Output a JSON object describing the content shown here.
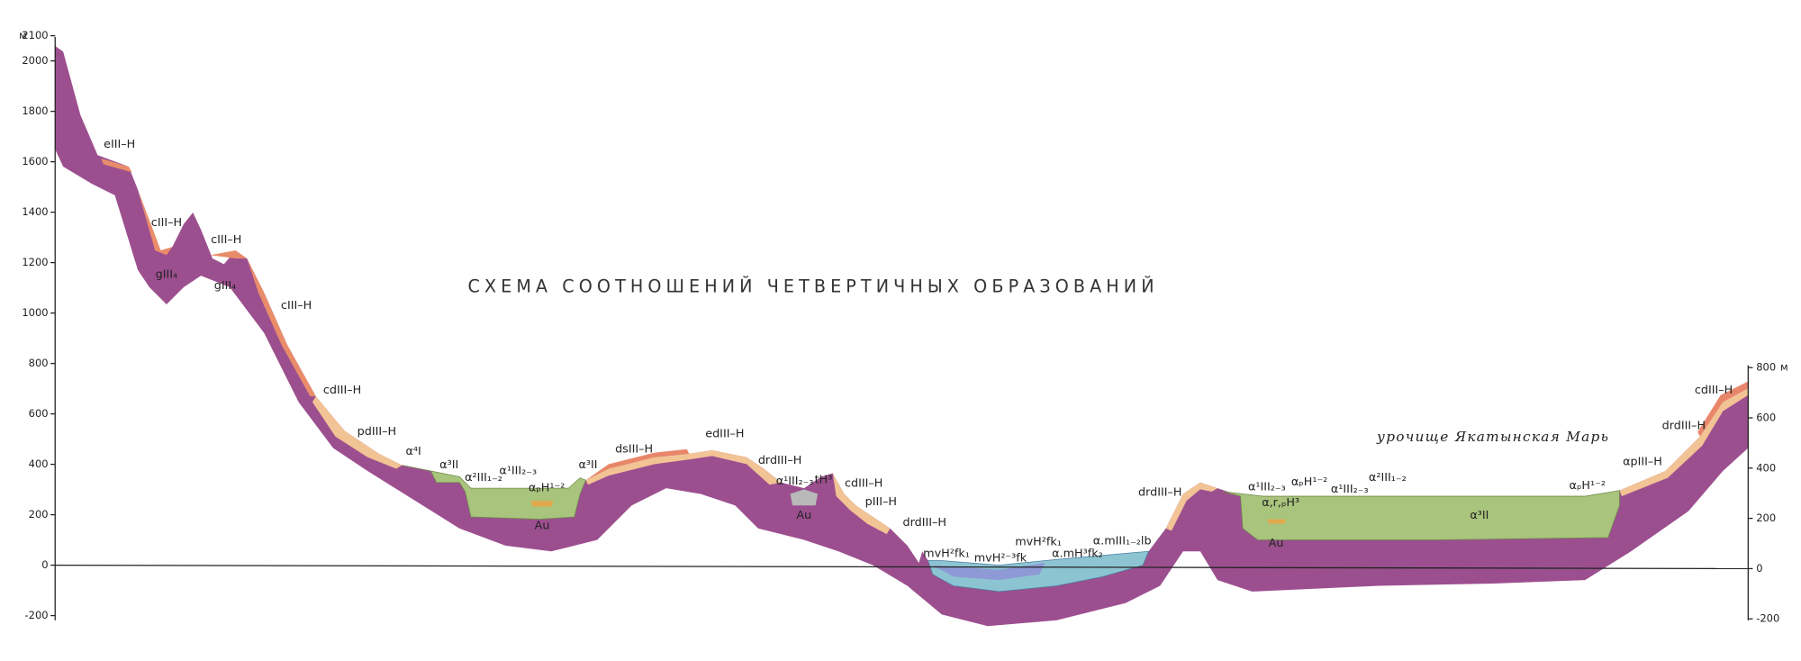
{
  "title": "СХЕМА СООТНОШЕНИЙ ЧЕТВЕРТИЧНЫХ ОБРАЗОВАНИЙ",
  "left_axis": {
    "unit": "м",
    "ticks": [
      2100,
      2000,
      1800,
      1600,
      1400,
      1200,
      1000,
      800,
      600,
      400,
      200,
      0,
      -200
    ]
  },
  "right_axis": {
    "unit": "м",
    "ticks": [
      800,
      600,
      400,
      200,
      0,
      -200
    ]
  },
  "place_name": "урочище Якатынская Марь",
  "labels": [
    "eIII–H",
    "cIII–H",
    "cIII–H",
    "gIII₄",
    "gIII₄",
    "cIII–H",
    "cdIII–H",
    "pdIII–H",
    "α⁴I",
    "α³II",
    "α²III₁₋₂",
    "α¹III₂₋₃",
    "αₚH¹⁻²",
    "Au",
    "α³II",
    "dsIII–H",
    "edIII–H",
    "drdIII–H",
    "α¹III₂₋₃",
    "tH³",
    "Au",
    "cdIII–H",
    "pIII–H",
    "drdIII–H",
    "mvH²fk₁",
    "mvH²⁻³fk",
    "mvH²fk₁",
    "α.mH³fk₂",
    "α.mIII₁₋₂lb",
    "drdIII–H",
    "α¹III₂₋₃",
    "αₚH¹⁻²",
    "α,r,ₚH³",
    "α¹III₂₋₃",
    "α²III₁₋₂",
    "α³II",
    "Au",
    "αₚH¹⁻²",
    "αpIII–H",
    "drdIII–H",
    "cdIII–H"
  ]
}
